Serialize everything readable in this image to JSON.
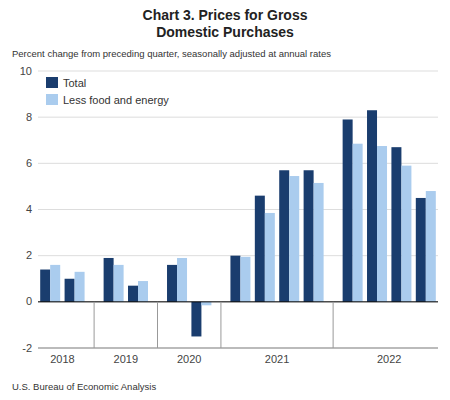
{
  "chart_data": {
    "type": "bar",
    "title": "Chart 3. Prices for Gross\nDomestic Purchases",
    "subtitle": "Percent change from preceding quarter, seasonally adjusted at annual rates",
    "annotations": [
      "U.S. Bureau of Economic Analysis"
    ],
    "categories": [
      "2018",
      null,
      "2019",
      null,
      "2020",
      null,
      "2021",
      null,
      null,
      null,
      "2022",
      null,
      null,
      null
    ],
    "series": [
      {
        "name": "Total",
        "color": "#1a3d6e",
        "values": [
          1.4,
          1.0,
          1.9,
          0.7,
          1.6,
          -1.5,
          2.0,
          4.6,
          5.7,
          5.7,
          7.9,
          8.3,
          6.7,
          4.5
        ]
      },
      {
        "name": "Less food and energy",
        "color": "#aaccee",
        "values": [
          1.6,
          1.3,
          1.6,
          0.9,
          1.9,
          -0.15,
          1.95,
          3.85,
          5.45,
          5.15,
          6.85,
          6.75,
          5.9,
          4.8
        ]
      }
    ],
    "ylim": [
      -2,
      10
    ],
    "yticks": [
      -2,
      0,
      2,
      4,
      6,
      8,
      10
    ],
    "grid": true,
    "legend": "upper left"
  }
}
